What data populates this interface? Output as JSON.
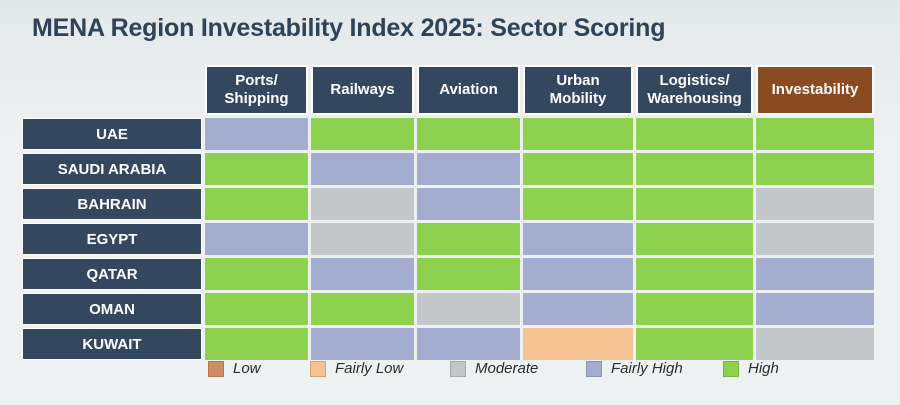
{
  "title": "MENA Region Investability Index 2025: Sector Scoring",
  "chart_data": {
    "type": "heatmap",
    "title": "MENA Region Investability Index 2025: Sector Scoring",
    "columns": [
      "Ports/\nShipping",
      "Railways",
      "Aviation",
      "Urban\nMobility",
      "Logistics/\nWarehousing",
      "Investability"
    ],
    "rows": [
      "UAE",
      "SAUDI ARABIA",
      "BAHRAIN",
      "EGYPT",
      "QATAR",
      "OMAN",
      "KUWAIT"
    ],
    "levels": [
      "Low",
      "Fairly Low",
      "Moderate",
      "Fairly High",
      "High"
    ],
    "values": [
      [
        "Fairly High",
        "High",
        "High",
        "High",
        "High",
        "High"
      ],
      [
        "High",
        "Fairly High",
        "Fairly High",
        "High",
        "High",
        "High"
      ],
      [
        "High",
        "Moderate",
        "Fairly High",
        "High",
        "High",
        "Moderate"
      ],
      [
        "Fairly High",
        "Moderate",
        "High",
        "Fairly High",
        "High",
        "Moderate"
      ],
      [
        "High",
        "Fairly High",
        "High",
        "Fairly High",
        "High",
        "Fairly High"
      ],
      [
        "High",
        "High",
        "Moderate",
        "Fairly High",
        "High",
        "Fairly High"
      ],
      [
        "High",
        "Fairly High",
        "Fairly High",
        "Fairly Low",
        "High",
        "Moderate"
      ]
    ],
    "legend_placement": "bottom"
  },
  "colors": {
    "Low": "#cf8d62",
    "Fairly Low": "#f6c393",
    "Moderate": "#c3c7c9",
    "Fairly High": "#a4adcf",
    "High": "#8ed14f",
    "header": "#33485e",
    "highlight_header": "#8a4a22"
  },
  "highlight_column": "Investability"
}
